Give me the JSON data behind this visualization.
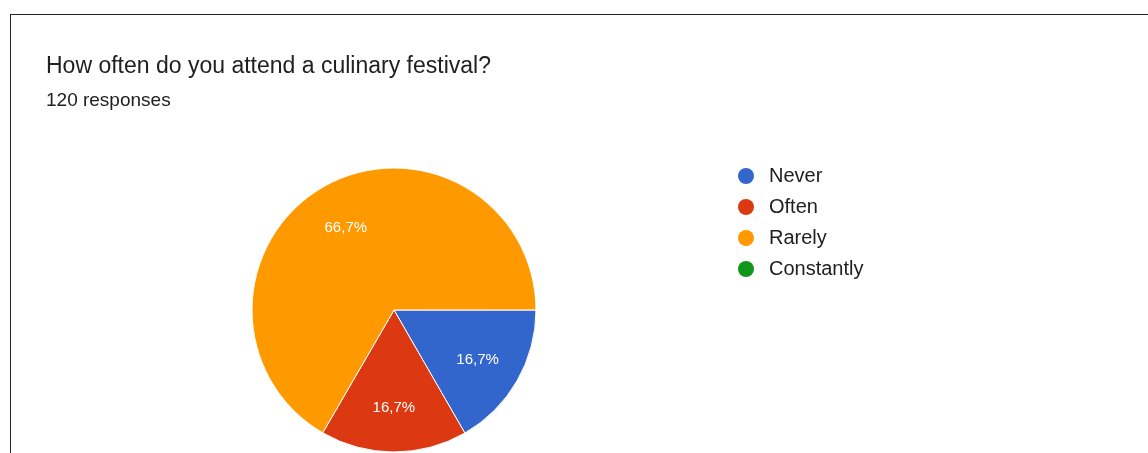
{
  "chart_data": {
    "type": "pie",
    "title": "How often do you attend a culinary festival?",
    "subtitle": "120 responses",
    "categories": [
      "Never",
      "Often",
      "Rarely",
      "Constantly"
    ],
    "values": [
      16.7,
      16.7,
      66.7,
      0
    ],
    "value_labels": [
      "16,7%",
      "16,7%",
      "66,7%",
      null
    ],
    "colors": [
      "#3366cc",
      "#dc3912",
      "#ff9900",
      "#109618"
    ],
    "legend": "right"
  }
}
